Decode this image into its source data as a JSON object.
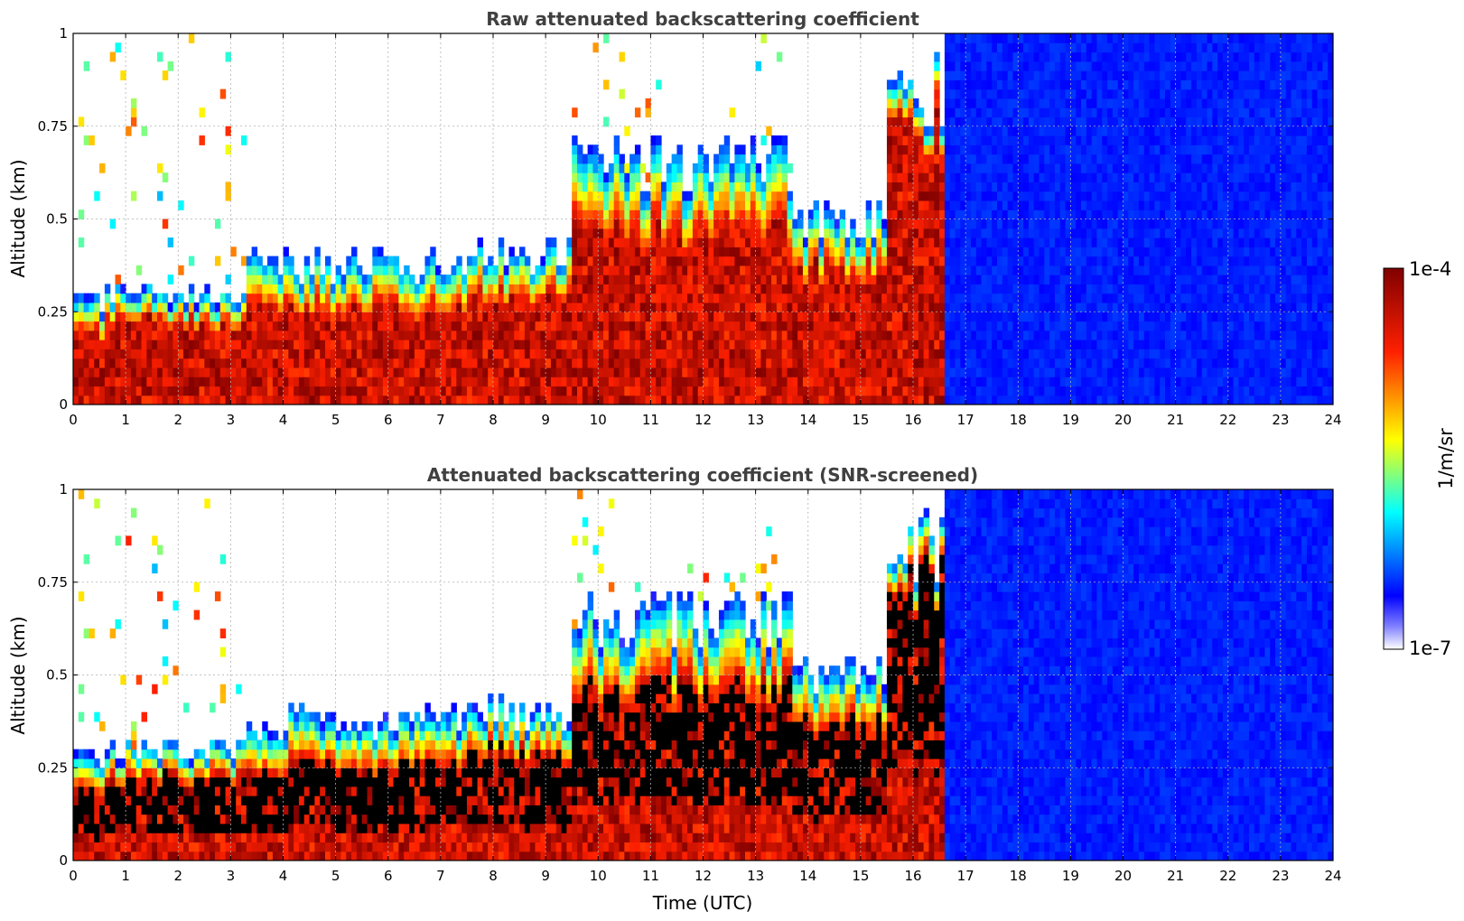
{
  "chart_data": [
    {
      "type": "heatmap",
      "title": "Raw attenuated backscattering coefficient",
      "xlabel": "",
      "ylabel": "Altitude (km)",
      "xlim": [
        0,
        24
      ],
      "ylim": [
        0,
        1
      ],
      "x_ticks": [
        "0",
        "1",
        "2",
        "3",
        "4",
        "5",
        "6",
        "7",
        "8",
        "9",
        "10",
        "11",
        "12",
        "13",
        "14",
        "15",
        "16",
        "17",
        "18",
        "19",
        "20",
        "21",
        "22",
        "23",
        "24"
      ],
      "y_ticks": [
        "0",
        "0.25",
        "0.5",
        "0.75",
        "1"
      ],
      "grid": true,
      "colorscale": "jet (white at low end)",
      "color_scale_type": "log",
      "masked_color": null,
      "segments": [
        {
          "x": [
            0.0,
            0.6
          ],
          "layer_top_km": 0.28,
          "dense_top_km": 0.18,
          "upper_streaks": true
        },
        {
          "x": [
            0.6,
            3.3
          ],
          "layer_top_km": 0.3,
          "dense_top_km": 0.22,
          "upper_streaks": true
        },
        {
          "x": [
            3.3,
            7.5
          ],
          "layer_top_km": 0.38,
          "dense_top_km": 0.25,
          "upper_streaks": false
        },
        {
          "x": [
            7.5,
            9.5
          ],
          "layer_top_km": 0.4,
          "dense_top_km": 0.28,
          "upper_streaks": false
        },
        {
          "x": [
            9.5,
            13.7
          ],
          "layer_top_km": 0.65,
          "dense_top_km": 0.45,
          "upper_streaks": true
        },
        {
          "x": [
            13.7,
            15.5
          ],
          "layer_top_km": 0.5,
          "dense_top_km": 0.35,
          "upper_streaks": false
        },
        {
          "x": [
            15.5,
            16.6
          ],
          "layer_top_km": 0.85,
          "dense_top_km": 0.75,
          "upper_streaks": false
        },
        {
          "x": [
            16.6,
            24.0
          ],
          "layer_top_km": 1.0,
          "dense_top_km": 0.0,
          "upper_streaks": false
        }
      ]
    },
    {
      "type": "heatmap",
      "title": "Attenuated backscattering coefficient (SNR-screened)",
      "xlabel": "Time (UTC)",
      "ylabel": "Altitude (km)",
      "xlim": [
        0,
        24
      ],
      "ylim": [
        0,
        1
      ],
      "x_ticks": [
        "0",
        "1",
        "2",
        "3",
        "4",
        "5",
        "6",
        "7",
        "8",
        "9",
        "10",
        "11",
        "12",
        "13",
        "14",
        "15",
        "16",
        "17",
        "18",
        "19",
        "20",
        "21",
        "22",
        "23",
        "24"
      ],
      "y_ticks": [
        "0",
        "0.25",
        "0.5",
        "0.75",
        "1"
      ],
      "grid": true,
      "colorscale": "jet (white at low end)",
      "color_scale_type": "log",
      "masked_color": "#000000",
      "segments": [
        {
          "x": [
            0.0,
            0.6
          ],
          "layer_top_km": 0.28,
          "dense_top_km": 0.18,
          "upper_streaks": true
        },
        {
          "x": [
            0.6,
            3.3
          ],
          "layer_top_km": 0.3,
          "dense_top_km": 0.22,
          "upper_streaks": true
        },
        {
          "x": [
            3.3,
            7.5
          ],
          "layer_top_km": 0.38,
          "dense_top_km": 0.25,
          "upper_streaks": false
        },
        {
          "x": [
            7.5,
            9.5
          ],
          "layer_top_km": 0.4,
          "dense_top_km": 0.28,
          "upper_streaks": false
        },
        {
          "x": [
            9.5,
            13.7
          ],
          "layer_top_km": 0.65,
          "dense_top_km": 0.45,
          "upper_streaks": true
        },
        {
          "x": [
            13.7,
            15.5
          ],
          "layer_top_km": 0.5,
          "dense_top_km": 0.35,
          "upper_streaks": false
        },
        {
          "x": [
            15.5,
            16.6
          ],
          "layer_top_km": 0.85,
          "dense_top_km": 0.75,
          "upper_streaks": false
        },
        {
          "x": [
            16.6,
            24.0
          ],
          "layer_top_km": 1.0,
          "dense_top_km": 0.0,
          "upper_streaks": false
        }
      ]
    }
  ],
  "colorbar": {
    "max_label": "1e-4",
    "min_label": "1e-7",
    "unit_label": "1/m/sr",
    "colors": [
      "#ffffff",
      "#0000ff",
      "#00ffff",
      "#ffff00",
      "#ff0000",
      "#800000"
    ]
  }
}
